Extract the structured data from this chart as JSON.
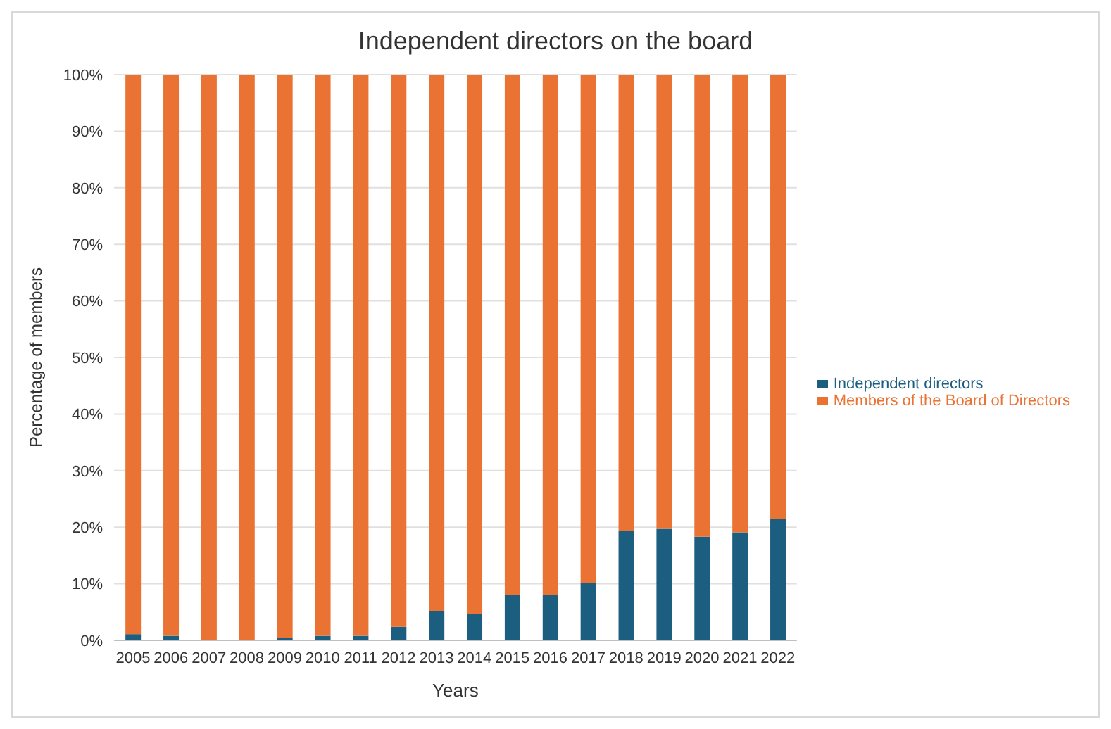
{
  "chart_data": {
    "type": "bar",
    "title": "Independent directors on the board",
    "xlabel": "Years",
    "ylabel": "Percentage of members",
    "categories": [
      "2005",
      "2006",
      "2007",
      "2008",
      "2009",
      "2010",
      "2011",
      "2012",
      "2013",
      "2014",
      "2015",
      "2016",
      "2017",
      "2018",
      "2019",
      "2020",
      "2021",
      "2022"
    ],
    "stacked": true,
    "series": [
      {
        "name": "Independent directors",
        "color": "#1b5e80",
        "values": [
          1.1,
          0.8,
          0,
          0,
          0.4,
          0.8,
          0.8,
          2.4,
          5.2,
          4.7,
          8.1,
          8.0,
          10.1,
          19.4,
          19.7,
          18.3,
          19.1,
          21.4
        ]
      },
      {
        "name": "Members of the Board of Directors",
        "color": "#ea7334",
        "values": [
          98.9,
          99.2,
          100,
          100,
          99.6,
          99.2,
          99.2,
          97.6,
          94.8,
          95.3,
          91.9,
          92.0,
          89.9,
          80.6,
          80.3,
          81.7,
          80.9,
          78.6
        ]
      }
    ],
    "ylim": [
      0,
      100
    ],
    "yticks": [
      {
        "value": 0,
        "label": "0%"
      },
      {
        "value": 10,
        "label": "10%"
      },
      {
        "value": 20,
        "label": "20%"
      },
      {
        "value": 30,
        "label": "30%"
      },
      {
        "value": 40,
        "label": "40%"
      },
      {
        "value": 50,
        "label": "50%"
      },
      {
        "value": 60,
        "label": "60%"
      },
      {
        "value": 70,
        "label": "70%"
      },
      {
        "value": 80,
        "label": "80%"
      },
      {
        "value": 90,
        "label": "90%"
      },
      {
        "value": 100,
        "label": "100%"
      }
    ],
    "grid": "y",
    "legend": "right"
  }
}
